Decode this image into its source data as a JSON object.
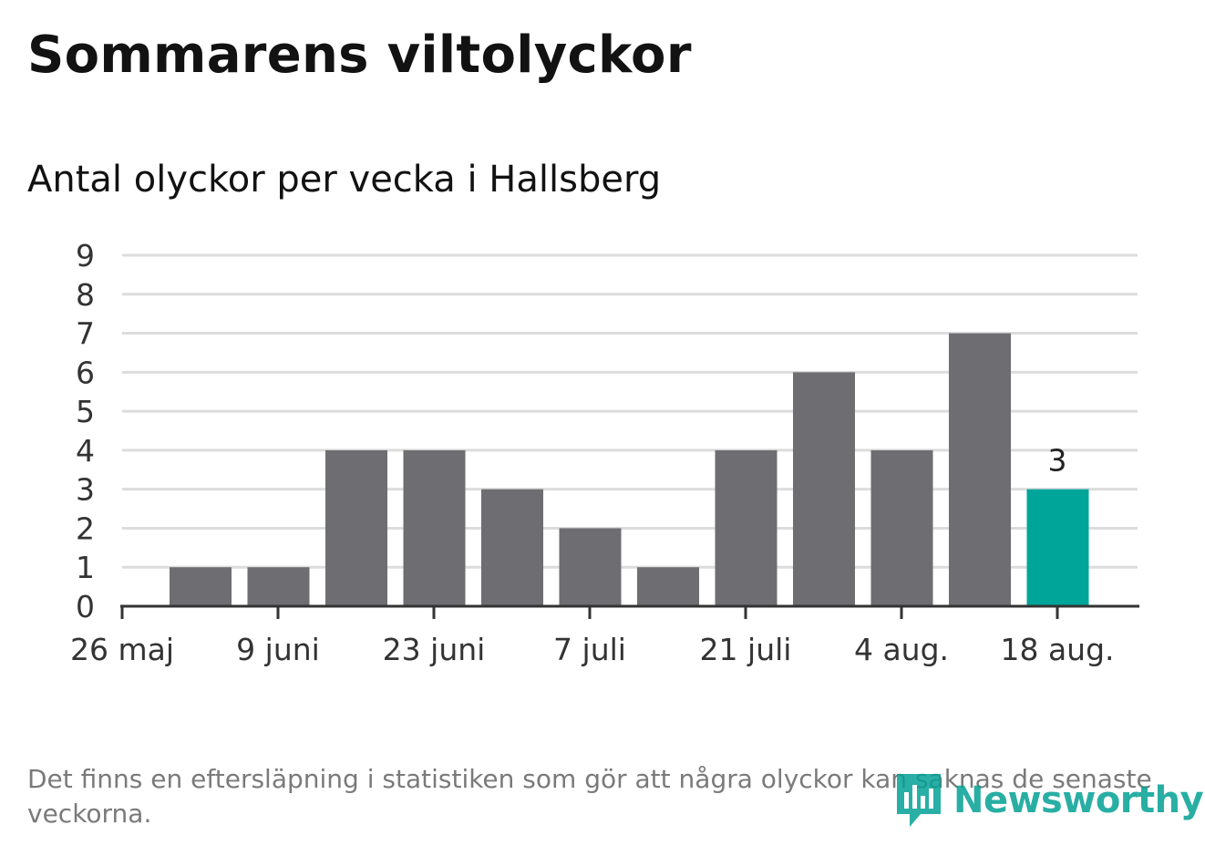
{
  "header": {
    "title": "Sommarens viltolyckor",
    "subtitle": "Antal olyckor per vecka i Hallsberg"
  },
  "chart_data": {
    "type": "bar",
    "ylim": [
      0,
      9
    ],
    "yticks": [
      "0",
      "1",
      "2",
      "3",
      "4",
      "5",
      "6",
      "7",
      "8",
      "9"
    ],
    "xtick_labels": [
      "26 maj",
      "9 juni",
      "23 juni",
      "7 juli",
      "21 juli",
      "4 aug.",
      "18 aug."
    ],
    "values": [
      0,
      1,
      1,
      4,
      4,
      3,
      2,
      1,
      4,
      6,
      4,
      7,
      3
    ],
    "highlight_index": 12,
    "highlight_label": "3",
    "grid": true,
    "colors": {
      "bar": "#6e6d72",
      "highlight": "#00a59a",
      "grid": "#dcdcdc",
      "axis": "#333333"
    }
  },
  "footer": {
    "note": "Det finns en eftersläpning i statistiken som gör att några olyckor kan saknas de senaste veckorna.",
    "logo_text": "Newsworthy",
    "logo_icon": "newsworthy-bar-chart-icon"
  }
}
